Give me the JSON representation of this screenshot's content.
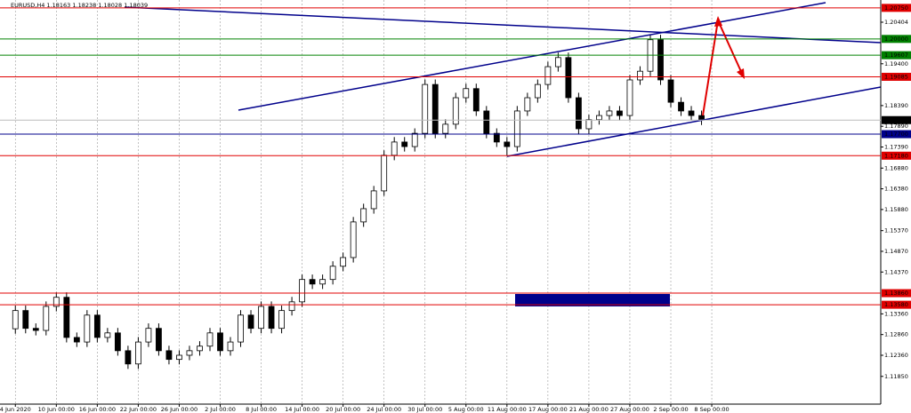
{
  "chart_data": {
    "type": "candlestick",
    "title": "EURUSD,H4 1.18163 1.18238 1.18028 1.18039",
    "bull_color": "#ffffff",
    "bear_color": "#000000",
    "xlim": [
      -1.5,
      84.5
    ],
    "ylim": [
      1.1118,
      1.2094
    ],
    "grid": true,
    "xticks": [
      {
        "value": 0,
        "label": "4 Jun 2020"
      },
      {
        "value": 4,
        "label": "10 Jun 00:00"
      },
      {
        "value": 8,
        "label": "16 Jun 00:00"
      },
      {
        "value": 12,
        "label": "22 Jun 00:00"
      },
      {
        "value": 16,
        "label": "26 Jun 00:00"
      },
      {
        "value": 20,
        "label": "2 Jul 00:00"
      },
      {
        "value": 24,
        "label": "8 Jul 00:00"
      },
      {
        "value": 28,
        "label": "14 Jul 00:00"
      },
      {
        "value": 32,
        "label": "20 Jul 00:00"
      },
      {
        "value": 36,
        "label": "24 Jul 00:00"
      },
      {
        "value": 40,
        "label": "30 Jul 00:00"
      },
      {
        "value": 44,
        "label": "5 Aug 00:00"
      },
      {
        "value": 48,
        "label": "11 Aug 00:00"
      },
      {
        "value": 52,
        "label": "17 Aug 00:00"
      },
      {
        "value": 56,
        "label": "21 Aug 00:00"
      },
      {
        "value": 60,
        "label": "27 Aug 00:00"
      },
      {
        "value": 64,
        "label": "2 Sep 00:00"
      },
      {
        "value": 68,
        "label": "8 Sep 00:00"
      }
    ],
    "yticks": [
      {
        "value": 1.20404,
        "label": "1.20404"
      },
      {
        "value": 1.194,
        "label": "1.19400"
      },
      {
        "value": 1.1839,
        "label": "1.18390"
      },
      {
        "value": 1.1789,
        "label": "1.17890"
      },
      {
        "value": 1.1739,
        "label": "1.17390"
      },
      {
        "value": 1.1688,
        "label": "1.16880"
      },
      {
        "value": 1.1638,
        "label": "1.16380"
      },
      {
        "value": 1.1588,
        "label": "1.15880"
      },
      {
        "value": 1.1537,
        "label": "1.15370"
      },
      {
        "value": 1.1487,
        "label": "1.14870"
      },
      {
        "value": 1.1437,
        "label": "1.14370"
      },
      {
        "value": 1.1336,
        "label": "1.13360"
      },
      {
        "value": 1.1286,
        "label": "1.12860"
      },
      {
        "value": 1.1236,
        "label": "1.12360"
      },
      {
        "value": 1.1185,
        "label": "1.11850"
      }
    ],
    "levels": [
      {
        "value": 1.2075,
        "label": "1.20750",
        "color": "#e00000"
      },
      {
        "value": 1.2,
        "label": "1.20000",
        "color": "#008000"
      },
      {
        "value": 1.19607,
        "label": "1.19607",
        "color": "#008000"
      },
      {
        "value": 1.19085,
        "label": "1.19085",
        "color": "#e00000"
      },
      {
        "value": 1.18039,
        "label": "1.18039",
        "color": "#000000"
      },
      {
        "value": 1.177,
        "label": "1.17700",
        "color": "#00008b"
      },
      {
        "value": 1.1718,
        "label": "1.17180",
        "color": "#e00000"
      },
      {
        "value": 1.1386,
        "label": "1.13860",
        "color": "#e00000"
      },
      {
        "value": 1.1358,
        "label": "1.13580",
        "color": "#e00000"
      }
    ],
    "open": [
      1.13,
      1.1344,
      1.1301,
      1.1296,
      1.1354,
      1.1376,
      1.1279,
      1.1268,
      1.1333,
      1.1279,
      1.129,
      1.1247,
      1.1215,
      1.1268,
      1.1301,
      1.1247,
      1.1226,
      1.1236,
      1.1247,
      1.1258,
      1.129,
      1.1247,
      1.1268,
      1.1333,
      1.1301,
      1.1354,
      1.1301,
      1.1344,
      1.1365,
      1.1419,
      1.1408,
      1.1419,
      1.1451,
      1.1472,
      1.1558,
      1.159,
      1.1633,
      1.1719,
      1.1751,
      1.174,
      1.1772,
      1.189,
      1.1772,
      1.1794,
      1.1858,
      1.188,
      1.1826,
      1.1772,
      1.1751,
      1.174,
      1.1826,
      1.1858,
      1.189,
      1.1933,
      1.1955,
      1.1858,
      1.1783,
      1.1805,
      1.1815,
      1.1826,
      1.1815,
      1.1901,
      1.1922,
      1.1998,
      1.1901,
      1.1847,
      1.1826,
      1.1815
    ],
    "high": [
      1.1356,
      1.1356,
      1.1313,
      1.1366,
      1.1388,
      1.1388,
      1.1291,
      1.1345,
      1.1345,
      1.1302,
      1.1302,
      1.1259,
      1.128,
      1.1313,
      1.1313,
      1.1259,
      1.1248,
      1.1259,
      1.127,
      1.1302,
      1.1302,
      1.128,
      1.1345,
      1.1345,
      1.1366,
      1.1366,
      1.1356,
      1.1377,
      1.1431,
      1.1431,
      1.1431,
      1.1463,
      1.1484,
      1.157,
      1.1602,
      1.1645,
      1.1731,
      1.1763,
      1.1763,
      1.1784,
      1.1902,
      1.1902,
      1.1806,
      1.187,
      1.1892,
      1.1892,
      1.1838,
      1.1784,
      1.1763,
      1.1838,
      1.187,
      1.1902,
      1.1945,
      1.1967,
      1.1967,
      1.187,
      1.1817,
      1.1827,
      1.1838,
      1.1838,
      1.1913,
      1.1934,
      1.2011,
      1.201,
      1.1913,
      1.1859,
      1.1838,
      1.1827
    ],
    "low": [
      1.1288,
      1.1289,
      1.1284,
      1.1284,
      1.1342,
      1.1267,
      1.1256,
      1.1256,
      1.1267,
      1.1267,
      1.1235,
      1.1203,
      1.1203,
      1.1256,
      1.1235,
      1.1214,
      1.1214,
      1.1224,
      1.1235,
      1.1246,
      1.1235,
      1.1235,
      1.1256,
      1.1289,
      1.1289,
      1.1289,
      1.1289,
      1.1332,
      1.1353,
      1.1396,
      1.1396,
      1.1407,
      1.1439,
      1.146,
      1.1546,
      1.1578,
      1.1621,
      1.1707,
      1.1728,
      1.1728,
      1.176,
      1.176,
      1.176,
      1.1782,
      1.1846,
      1.1814,
      1.176,
      1.1739,
      1.1718,
      1.1728,
      1.1814,
      1.1846,
      1.1878,
      1.1921,
      1.1846,
      1.1771,
      1.1771,
      1.1793,
      1.1803,
      1.1803,
      1.1803,
      1.1889,
      1.191,
      1.1889,
      1.1835,
      1.1814,
      1.1803,
      1.1792
    ],
    "close": [
      1.1344,
      1.1301,
      1.1296,
      1.1354,
      1.1376,
      1.1279,
      1.1268,
      1.1333,
      1.1279,
      1.129,
      1.1247,
      1.1215,
      1.1268,
      1.1301,
      1.1247,
      1.1226,
      1.1236,
      1.1247,
      1.1258,
      1.129,
      1.1247,
      1.1268,
      1.1333,
      1.1301,
      1.1354,
      1.1301,
      1.1344,
      1.1365,
      1.1419,
      1.1408,
      1.1419,
      1.1451,
      1.1472,
      1.1558,
      1.159,
      1.1633,
      1.1719,
      1.1751,
      1.174,
      1.1772,
      1.189,
      1.1772,
      1.1794,
      1.1858,
      1.188,
      1.1826,
      1.1772,
      1.1751,
      1.174,
      1.1826,
      1.1858,
      1.189,
      1.1933,
      1.1955,
      1.1858,
      1.1783,
      1.1805,
      1.1815,
      1.1826,
      1.1815,
      1.1901,
      1.1922,
      1.1998,
      1.1901,
      1.1847,
      1.1826,
      1.1815,
      1.1804
    ]
  }
}
